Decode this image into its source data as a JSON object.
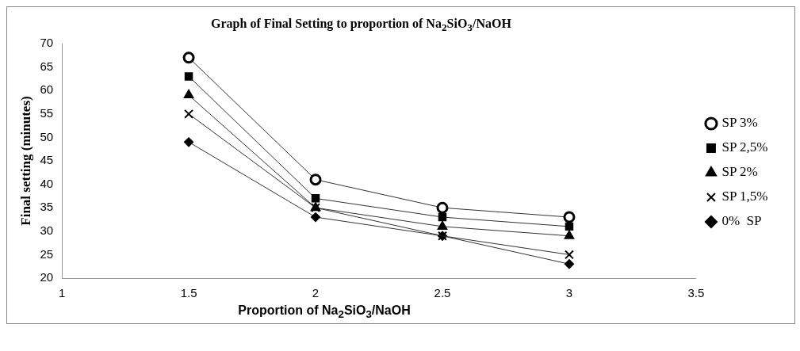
{
  "chart_data": {
    "type": "line",
    "title": "Graph  of Final Setting to proportion of  Na$_{2}$SiO$_{3}$/NaOH",
    "xlabel": "Proportion of Na$_{2}$SiO$_{3}$/NaOH",
    "ylabel": "Final setting (minutes)",
    "x": [
      1.5,
      2,
      2.5,
      3
    ],
    "xlim": [
      1,
      3.5
    ],
    "xticks": [
      1,
      1.5,
      2,
      2.5,
      3,
      3.5
    ],
    "ylim": [
      20,
      70
    ],
    "yticks": [
      20,
      25,
      30,
      35,
      40,
      45,
      50,
      55,
      60,
      65,
      70
    ],
    "grid": false,
    "legend": "right",
    "series": [
      {
        "name": "SP 3%",
        "color": "#000000",
        "marker": "circle",
        "values": [
          67,
          41,
          35,
          33
        ]
      },
      {
        "name": "SP 2,5%",
        "color": "#000000",
        "marker": "square",
        "values": [
          63,
          37,
          33,
          31
        ]
      },
      {
        "name": "SP 2%",
        "color": "#000000",
        "marker": "triangle",
        "values": [
          59,
          35,
          31,
          29
        ]
      },
      {
        "name": "SP 1,5%",
        "color": "#000000",
        "marker": "cross",
        "values": [
          55,
          35,
          29,
          25
        ]
      },
      {
        "name": "0%  SP",
        "color": "#000000",
        "marker": "diamond",
        "values": [
          49,
          33,
          29,
          23
        ]
      }
    ]
  }
}
